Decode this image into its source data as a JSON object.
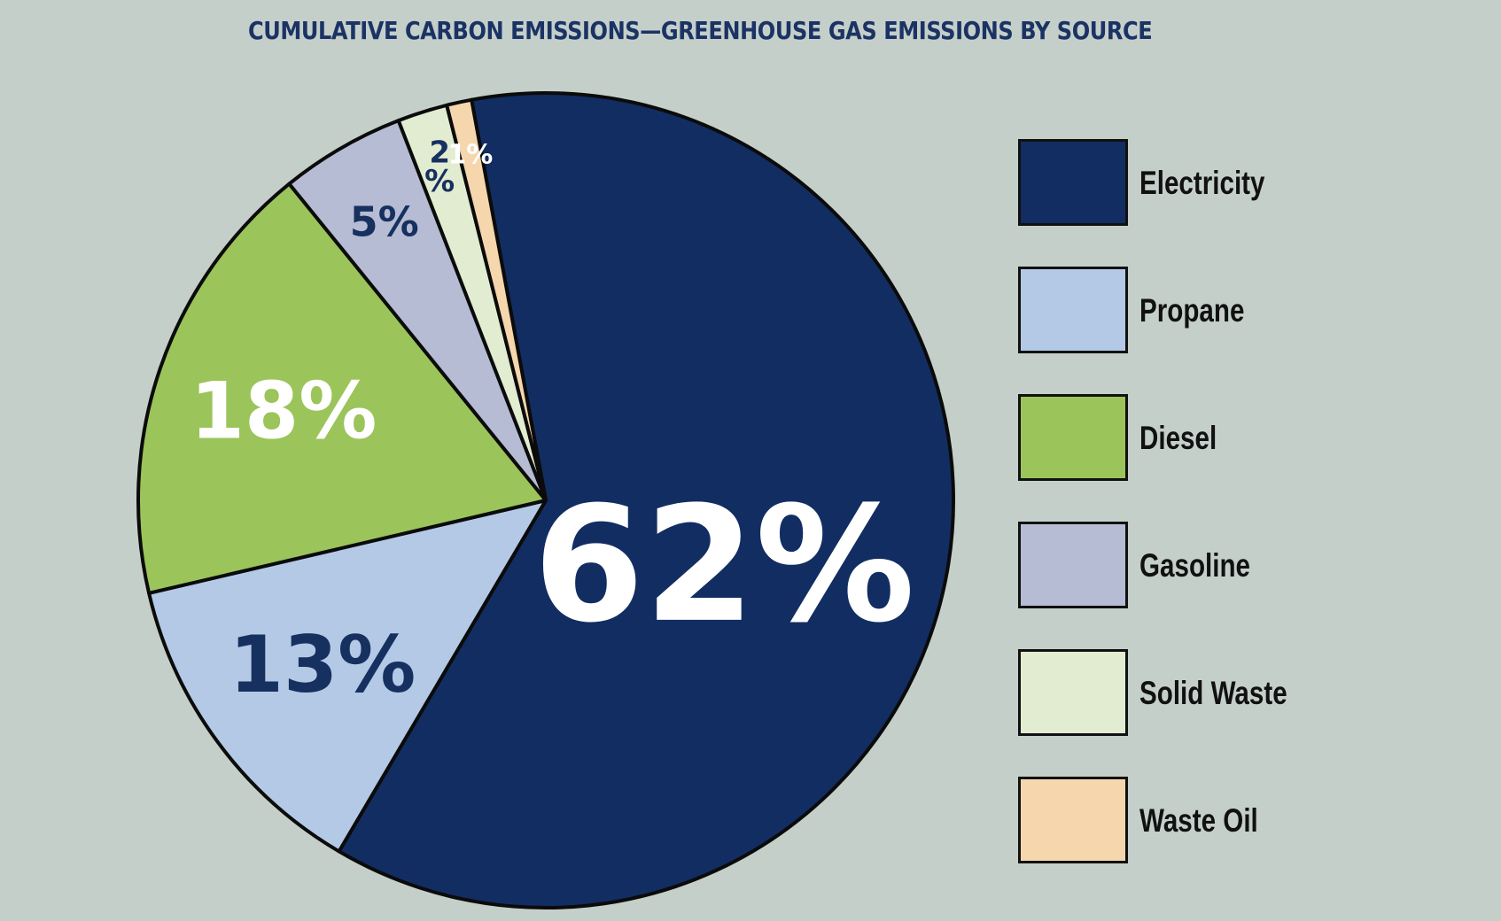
{
  "chart_data": {
    "type": "pie",
    "title": "CUMULATIVE CARBON EMISSIONS—GREENHOUSE GAS EMISSIONS BY SOURCE",
    "categories": [
      "Electricity",
      "Propane",
      "Diesel",
      "Gasoline",
      "Solid Waste",
      "Waste Oil"
    ],
    "values": [
      62,
      13,
      18,
      5,
      2,
      1
    ],
    "labels": [
      "62%",
      "13%",
      "18%",
      "5%",
      "2\n%",
      "1%"
    ],
    "colors": [
      "#122d61",
      "#b3c9e6",
      "#9bc45a",
      "#b5bcd3",
      "#e2ecd1",
      "#f6d6ac"
    ],
    "label_colors": [
      "#ffffff",
      "#16305f",
      "#ffffff",
      "#16305f",
      "#16305f",
      "#ffffff"
    ],
    "legend_position": "right",
    "start_direction": "top",
    "direction": "clockwise"
  }
}
